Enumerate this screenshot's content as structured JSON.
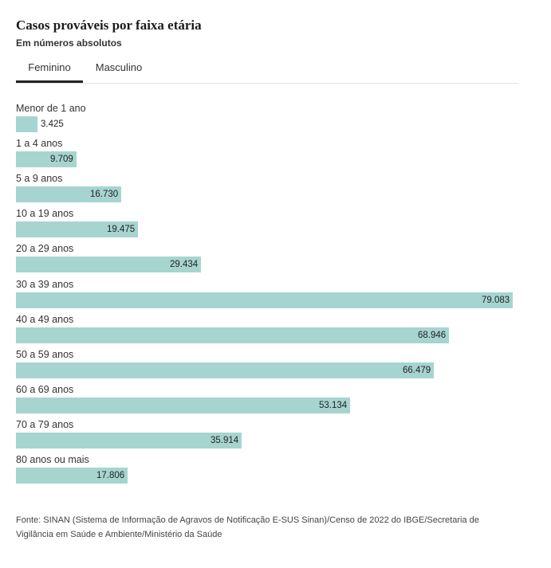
{
  "header": {
    "title": "Casos prováveis por faixa etária",
    "subtitle": "Em números absolutos"
  },
  "tabs": [
    {
      "label": "Feminino",
      "active": true
    },
    {
      "label": "Masculino",
      "active": false
    }
  ],
  "chart_data": {
    "type": "bar",
    "orientation": "horizontal",
    "title": "Casos prováveis por faixa etária",
    "subtitle": "Em números absolutos",
    "series": [
      {
        "name": "Feminino"
      }
    ],
    "categories": [
      "Menor de 1 ano",
      "1 a 4 anos",
      "5 a 9 anos",
      "10 a 19 anos",
      "20 a 29 anos",
      "30 a 39 anos",
      "40 a 49 anos",
      "50 a 59 anos",
      "60 a 69 anos",
      "70 a 79 anos",
      "80 anos ou mais"
    ],
    "values": [
      3425,
      9709,
      16730,
      19475,
      29434,
      79083,
      68946,
      66479,
      53134,
      35914,
      17806
    ],
    "value_labels": [
      "3.425",
      "9.709",
      "16.730",
      "19.475",
      "29.434",
      "79.083",
      "68.946",
      "66.479",
      "53.134",
      "35.914",
      "17.806"
    ],
    "xlim": [
      0,
      79083
    ],
    "bar_color": "#a6d5d0",
    "grid": false,
    "legend": "none"
  },
  "source": "Fonte: SINAN (Sistema de Informação de Agravos de Notificação E-SUS Sinan)/Censo de 2022 do IBGE/Secretaria de Vigilância em Saúde e Ambiente/Ministério da Saúde"
}
